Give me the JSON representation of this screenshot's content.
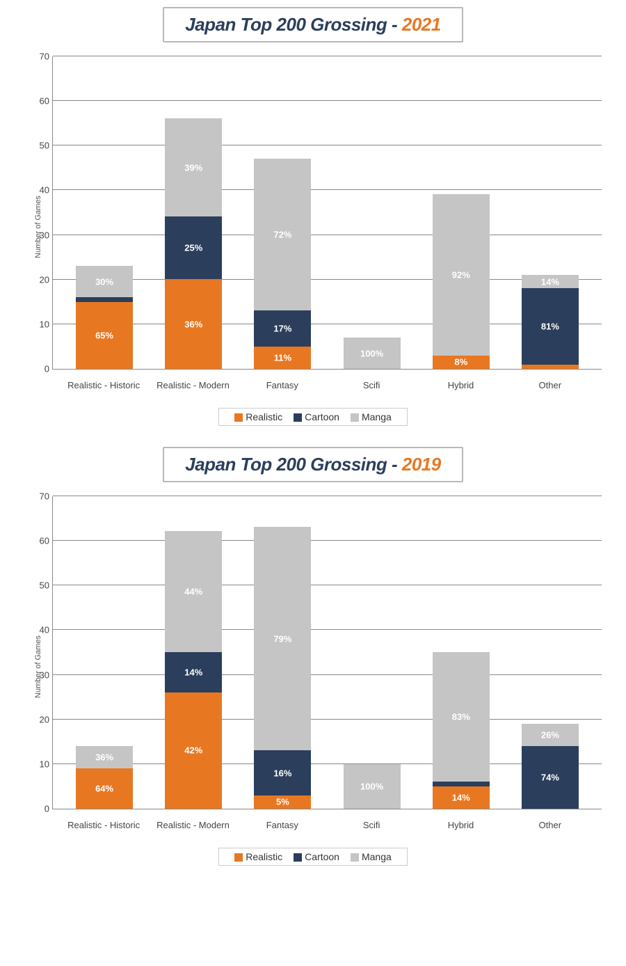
{
  "colors": {
    "realistic": "#e87722",
    "cartoon": "#2b3e5c",
    "manga": "#c5c5c5",
    "title_dark": "#2b3e5c",
    "title_accent": "#e87722",
    "grid": "#888888",
    "bg": "#ffffff"
  },
  "legend": [
    {
      "label": "Realistic",
      "color": "#e87722"
    },
    {
      "label": "Cartoon",
      "color": "#2b3e5c"
    },
    {
      "label": "Manga",
      "color": "#c5c5c5"
    }
  ],
  "ylabel": "Number of Games",
  "charts": [
    {
      "title_prefix": "Japan Top 200 Grossing - ",
      "title_year": "2021",
      "ylim": [
        0,
        70
      ],
      "ytick_step": 10,
      "categories": [
        "Realistic - Historic",
        "Realistic - Modern",
        "Fantasy",
        "Scifi",
        "Hybrid",
        "Other"
      ],
      "stacks": [
        {
          "realistic": {
            "v": 15,
            "pct": "65%"
          },
          "cartoon": {
            "v": 1,
            "pct": ""
          },
          "manga": {
            "v": 7,
            "pct": "30%"
          }
        },
        {
          "realistic": {
            "v": 20,
            "pct": "36%"
          },
          "cartoon": {
            "v": 14,
            "pct": "25%"
          },
          "manga": {
            "v": 22,
            "pct": "39%"
          }
        },
        {
          "realistic": {
            "v": 5,
            "pct": "11%"
          },
          "cartoon": {
            "v": 8,
            "pct": "17%"
          },
          "manga": {
            "v": 34,
            "pct": "72%"
          }
        },
        {
          "realistic": {
            "v": 0,
            "pct": ""
          },
          "cartoon": {
            "v": 0,
            "pct": ""
          },
          "manga": {
            "v": 7,
            "pct": "100%"
          }
        },
        {
          "realistic": {
            "v": 3,
            "pct": "8%"
          },
          "cartoon": {
            "v": 0,
            "pct": ""
          },
          "manga": {
            "v": 36,
            "pct": "92%"
          }
        },
        {
          "realistic": {
            "v": 1,
            "pct": ""
          },
          "cartoon": {
            "v": 17,
            "pct": "81%"
          },
          "manga": {
            "v": 3,
            "pct": "14%"
          }
        }
      ]
    },
    {
      "title_prefix": "Japan Top 200 Grossing - ",
      "title_year": "2019",
      "ylim": [
        0,
        70
      ],
      "ytick_step": 10,
      "categories": [
        "Realistic - Historic",
        "Realistic - Modern",
        "Fantasy",
        "Scifi",
        "Hybrid",
        "Other"
      ],
      "stacks": [
        {
          "realistic": {
            "v": 9,
            "pct": "64%"
          },
          "cartoon": {
            "v": 0,
            "pct": ""
          },
          "manga": {
            "v": 5,
            "pct": "36%"
          }
        },
        {
          "realistic": {
            "v": 26,
            "pct": "42%"
          },
          "cartoon": {
            "v": 9,
            "pct": "14%"
          },
          "manga": {
            "v": 27,
            "pct": "44%"
          }
        },
        {
          "realistic": {
            "v": 3,
            "pct": "5%"
          },
          "cartoon": {
            "v": 10,
            "pct": "16%"
          },
          "manga": {
            "v": 50,
            "pct": "79%"
          }
        },
        {
          "realistic": {
            "v": 0,
            "pct": ""
          },
          "cartoon": {
            "v": 0,
            "pct": ""
          },
          "manga": {
            "v": 10,
            "pct": "100%"
          }
        },
        {
          "realistic": {
            "v": 5,
            "pct": "14%"
          },
          "cartoon": {
            "v": 1,
            "pct": ""
          },
          "manga": {
            "v": 29,
            "pct": "83%"
          }
        },
        {
          "realistic": {
            "v": 0,
            "pct": ""
          },
          "cartoon": {
            "v": 14,
            "pct": "74%"
          },
          "manga": {
            "v": 5,
            "pct": "26%"
          }
        }
      ]
    }
  ]
}
